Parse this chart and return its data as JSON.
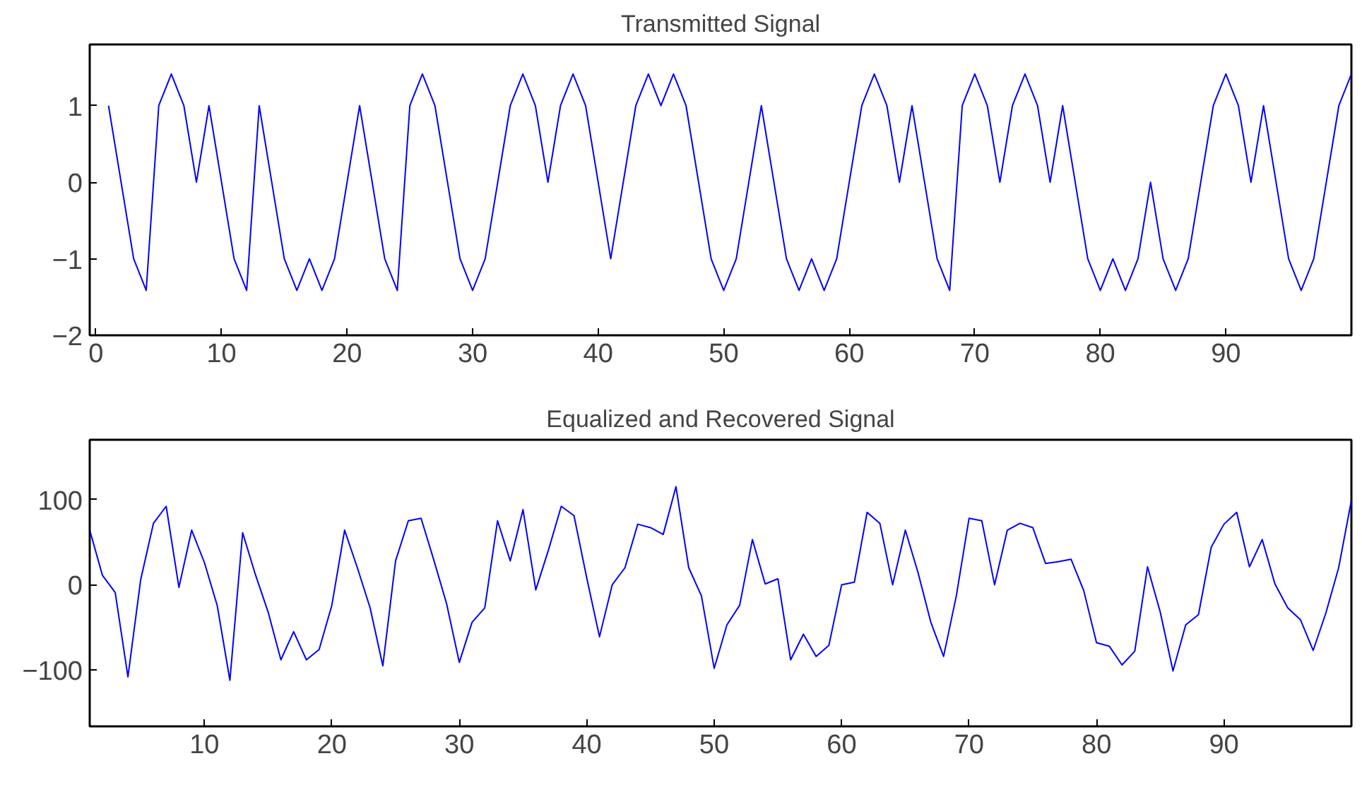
{
  "chart_data": [
    {
      "type": "line",
      "title": "Transmitted Signal",
      "grid": false,
      "marker": "none",
      "line_style": "solid",
      "x": [
        1,
        2,
        3,
        4,
        5,
        6,
        7,
        8,
        9,
        10,
        11,
        12,
        13,
        14,
        15,
        16,
        17,
        18,
        19,
        20,
        21,
        22,
        23,
        24,
        25,
        26,
        27,
        28,
        29,
        30,
        31,
        32,
        33,
        34,
        35,
        36,
        37,
        38,
        39,
        40,
        41,
        42,
        43,
        44,
        45,
        46,
        47,
        48,
        49,
        50,
        51,
        52,
        53,
        54,
        55,
        56,
        57,
        58,
        59,
        60,
        61,
        62,
        63,
        64,
        65,
        66,
        67,
        68,
        69,
        70,
        71,
        72,
        73,
        74,
        75,
        76,
        77,
        78,
        79,
        80,
        81,
        82,
        83,
        84,
        85,
        86,
        87,
        88,
        89,
        90,
        91,
        92,
        93,
        94,
        95,
        96,
        97,
        98,
        99,
        100
      ],
      "series": [
        {
          "color": "#0000ff",
          "values": [
            1,
            0,
            -1,
            -1.414,
            1,
            1.414,
            1,
            0,
            1,
            0,
            -1,
            -1.414,
            1,
            0,
            -1,
            -1.414,
            -1,
            -1.414,
            -1,
            0,
            1,
            0,
            -1,
            -1.414,
            1,
            1.414,
            1,
            0,
            -1,
            -1.414,
            -1,
            0,
            1,
            1.414,
            1,
            0,
            1,
            1.414,
            1,
            0,
            -1,
            0,
            1,
            1.414,
            1,
            1.414,
            1,
            0,
            -1,
            -1.414,
            -1,
            0,
            1,
            0,
            -1,
            -1.414,
            -1,
            -1.414,
            -1,
            0,
            1,
            1.414,
            1,
            0,
            1,
            0,
            -1,
            -1.414,
            1,
            1.414,
            1,
            0,
            1,
            1.414,
            1,
            0,
            1,
            0,
            -1,
            -1.414,
            -1,
            -1.414,
            -1,
            0,
            -1,
            -1.414,
            -1,
            0,
            1,
            1.414,
            1,
            0,
            1,
            0,
            -1,
            -1.414,
            -1,
            0,
            1,
            1.414
          ]
        }
      ],
      "xlim": [
        -0.5,
        100
      ],
      "xticks": [
        0,
        10,
        20,
        30,
        40,
        50,
        60,
        70,
        80,
        90
      ],
      "ylim": [
        -2,
        1.8
      ],
      "yticks": [
        -2,
        -1,
        0,
        1
      ]
    },
    {
      "type": "line",
      "title": "Equalized and Recovered Signal",
      "grid": false,
      "marker": "none",
      "line_style": "solid",
      "x": [
        1,
        2,
        3,
        4,
        5,
        6,
        7,
        8,
        9,
        10,
        11,
        12,
        13,
        14,
        15,
        16,
        17,
        18,
        19,
        20,
        21,
        22,
        23,
        24,
        25,
        26,
        27,
        28,
        29,
        30,
        31,
        32,
        33,
        34,
        35,
        36,
        37,
        38,
        39,
        40,
        41,
        42,
        43,
        44,
        45,
        46,
        47,
        48,
        49,
        50,
        51,
        52,
        53,
        54,
        55,
        56,
        57,
        58,
        59,
        60,
        61,
        62,
        63,
        64,
        65,
        66,
        67,
        68,
        69,
        70,
        71,
        72,
        73,
        74,
        75,
        76,
        77,
        78,
        79,
        80,
        81,
        82,
        83,
        84,
        85,
        86,
        87,
        88,
        89,
        90,
        91,
        92,
        93,
        94,
        95,
        96,
        97,
        98,
        99,
        100
      ],
      "series": [
        {
          "color": "#0000ff",
          "values": [
            64,
            11,
            -9,
            -108,
            6,
            72,
            92,
            -3,
            64,
            26,
            -24,
            -112,
            61,
            12,
            -32,
            -88,
            -55,
            -88,
            -76,
            -24,
            64,
            20,
            -27,
            -95,
            28,
            75,
            78,
            29,
            -22,
            -91,
            -44,
            -27,
            75,
            28,
            88,
            -6,
            41,
            92,
            81,
            8,
            -61,
            0,
            20,
            71,
            67,
            59,
            115,
            20,
            -13,
            -98,
            -47,
            -24,
            53,
            1,
            7,
            -88,
            -58,
            -84,
            -71,
            0,
            3,
            85,
            72,
            0,
            64,
            14,
            -44,
            -84,
            -13,
            78,
            75,
            0,
            64,
            72,
            67,
            25,
            27,
            30,
            -7,
            -68,
            -72,
            -94,
            -78,
            21,
            -32,
            -101,
            -47,
            -35,
            44,
            71,
            85,
            21,
            53,
            1,
            -27,
            -41,
            -77,
            -33,
            20,
            99
          ]
        }
      ],
      "xlim": [
        1,
        100
      ],
      "xticks": [
        10,
        20,
        30,
        40,
        50,
        60,
        70,
        80,
        90
      ],
      "ylim": [
        -166,
        170
      ],
      "yticks": [
        -100,
        0,
        100
      ]
    }
  ]
}
